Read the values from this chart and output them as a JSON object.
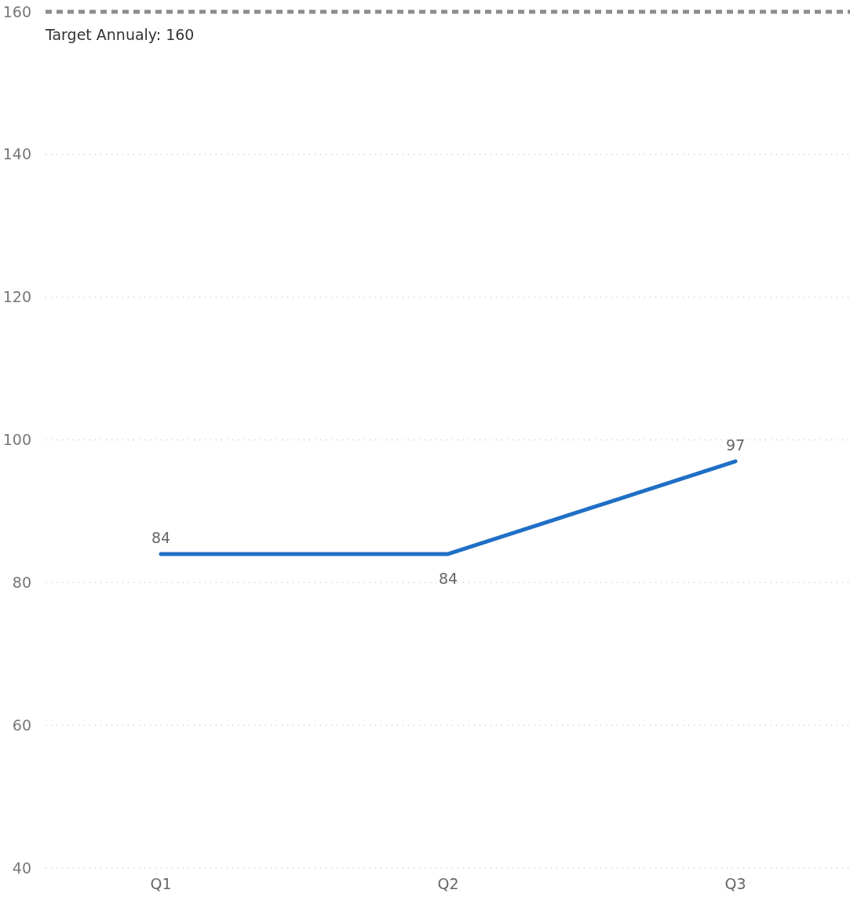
{
  "chart_data": {
    "type": "line",
    "categories": [
      "Q1",
      "Q2",
      "Q3"
    ],
    "series": [
      {
        "color": "#1f6fc5",
        "values": [
          84,
          84,
          97
        ]
      }
    ],
    "ylim": [
      40,
      160
    ],
    "yticks": [
      40,
      60,
      80,
      100,
      120,
      140,
      160
    ],
    "grid": "y",
    "data_labels": true,
    "marker": "none",
    "line_style": "solid",
    "ref_lines": [
      {
        "axis": "y",
        "value": 160,
        "label": "Target Annualy: 160",
        "color": "#8c8c8c",
        "line_style": "dashed"
      }
    ]
  }
}
